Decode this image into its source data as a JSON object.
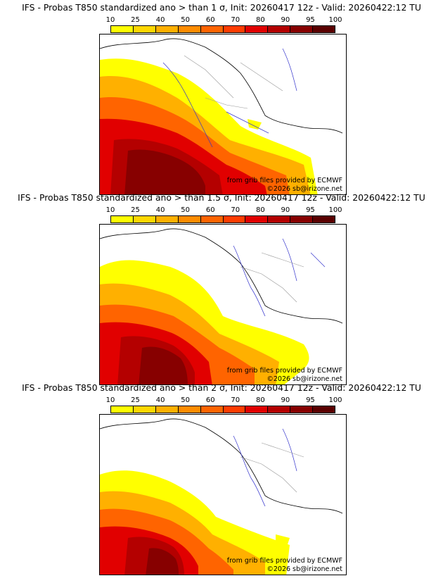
{
  "colorbar": {
    "ticks": [
      "10",
      "25",
      "40",
      "50",
      "60",
      "70",
      "80",
      "90",
      "95",
      "100"
    ],
    "colors": [
      "#ffff00",
      "#ffd700",
      "#ffb000",
      "#ff8c00",
      "#ff6400",
      "#ff3c00",
      "#e10000",
      "#b40000",
      "#870000",
      "#5a0000"
    ]
  },
  "panels": [
    {
      "title": "IFS - Probas T850  standardized ano > than 1 σ, Init: 20260417 12z - Valid: 20260422:12 TU",
      "credit": "from grib files provided by ECMWF",
      "copyright": "©2026 sb@irizone.net"
    },
    {
      "title": "IFS - Probas T850  standardized ano > than 1.5 σ, Init: 20260417 12z - Valid: 20260422:12 TU",
      "credit": "from grib files provided by ECMWF",
      "copyright": "©2026 sb@irizone.net"
    },
    {
      "title": "IFS - Probas T850  standardized ano > than 2 σ, Init: 20260417 12z - Valid: 20260422:12 TU",
      "credit": "from grib files provided by ECMWF",
      "copyright": "©2026 sb@irizone.net"
    }
  ]
}
